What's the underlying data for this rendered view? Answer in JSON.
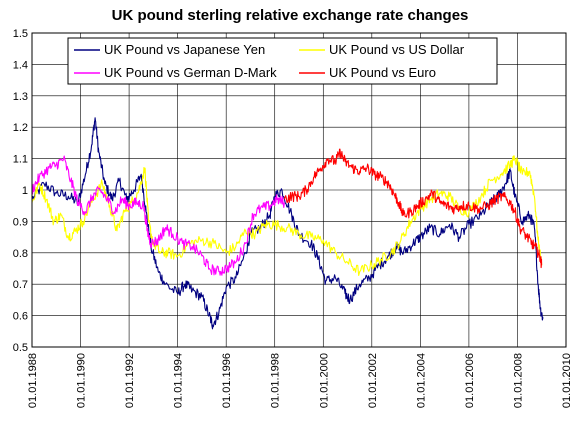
{
  "chart_data": {
    "type": "line",
    "title": "UK pound sterling relative exchange rate changes",
    "xlabel": "",
    "ylabel": "",
    "xlim": [
      1988,
      2010
    ],
    "ylim": [
      0.5,
      1.5
    ],
    "grid": true,
    "legend": "top (inside plot)",
    "y_ticks": [
      "0.5",
      "0.6",
      "0.7",
      "0.8",
      "0.9",
      "1",
      "1.1",
      "1.2",
      "1.3",
      "1.4",
      "1.5"
    ],
    "x_ticks": [
      "01.01.1988",
      "01.01.1990",
      "01.01.1992",
      "01.01.1994",
      "01.01.1996",
      "01.01.1998",
      "01.01.2000",
      "01.01.2002",
      "01.01.2004",
      "01.01.2006",
      "01.01.2008",
      "01.01.2010"
    ],
    "series": [
      {
        "name": "UK Pound vs Japanese Yen",
        "color": "#000080",
        "points": [
          [
            1988.0,
            0.97
          ],
          [
            1988.5,
            1.02
          ],
          [
            1989.0,
            0.99
          ],
          [
            1989.5,
            0.98
          ],
          [
            1989.9,
            0.96
          ],
          [
            1990.2,
            1.05
          ],
          [
            1990.45,
            1.14
          ],
          [
            1990.6,
            1.23
          ],
          [
            1990.75,
            1.12
          ],
          [
            1991.0,
            1.02
          ],
          [
            1991.3,
            0.97
          ],
          [
            1991.6,
            1.03
          ],
          [
            1991.9,
            0.97
          ],
          [
            1992.2,
            1.0
          ],
          [
            1992.5,
            1.05
          ],
          [
            1992.7,
            0.93
          ],
          [
            1992.9,
            0.82
          ],
          [
            1993.2,
            0.74
          ],
          [
            1993.5,
            0.7
          ],
          [
            1994.0,
            0.67
          ],
          [
            1994.3,
            0.7
          ],
          [
            1994.6,
            0.68
          ],
          [
            1995.0,
            0.66
          ],
          [
            1995.3,
            0.6
          ],
          [
            1995.45,
            0.57
          ],
          [
            1995.7,
            0.61
          ],
          [
            1996.0,
            0.69
          ],
          [
            1996.4,
            0.72
          ],
          [
            1996.8,
            0.8
          ],
          [
            1997.0,
            0.86
          ],
          [
            1997.4,
            0.88
          ],
          [
            1997.8,
            0.92
          ],
          [
            1998.0,
            0.98
          ],
          [
            1998.3,
            1.0
          ],
          [
            1998.7,
            0.92
          ],
          [
            1999.0,
            0.86
          ],
          [
            1999.5,
            0.83
          ],
          [
            1999.8,
            0.78
          ],
          [
            2000.1,
            0.71
          ],
          [
            2000.5,
            0.72
          ],
          [
            2000.9,
            0.67
          ],
          [
            2001.1,
            0.65
          ],
          [
            2001.5,
            0.7
          ],
          [
            2001.9,
            0.72
          ],
          [
            2002.3,
            0.76
          ],
          [
            2002.7,
            0.79
          ],
          [
            2003.0,
            0.82
          ],
          [
            2003.3,
            0.8
          ],
          [
            2003.7,
            0.83
          ],
          [
            2004.0,
            0.85
          ],
          [
            2004.4,
            0.88
          ],
          [
            2004.8,
            0.86
          ],
          [
            2005.2,
            0.89
          ],
          [
            2005.6,
            0.85
          ],
          [
            2006.0,
            0.89
          ],
          [
            2006.5,
            0.92
          ],
          [
            2006.9,
            0.96
          ],
          [
            2007.2,
            0.98
          ],
          [
            2007.5,
            1.02
          ],
          [
            2007.7,
            1.06
          ],
          [
            2007.9,
            0.98
          ],
          [
            2008.2,
            0.9
          ],
          [
            2008.5,
            0.92
          ],
          [
            2008.7,
            0.88
          ],
          [
            2008.85,
            0.7
          ],
          [
            2008.95,
            0.62
          ],
          [
            2009.05,
            0.59
          ]
        ]
      },
      {
        "name": "UK Pound vs US Dollar",
        "color": "#ffff00",
        "points": [
          [
            1988.0,
            0.96
          ],
          [
            1988.3,
            1.02
          ],
          [
            1988.6,
            0.97
          ],
          [
            1988.9,
            0.9
          ],
          [
            1989.2,
            0.92
          ],
          [
            1989.5,
            0.85
          ],
          [
            1989.8,
            0.87
          ],
          [
            1990.1,
            0.9
          ],
          [
            1990.5,
            0.97
          ],
          [
            1990.9,
            1.02
          ],
          [
            1991.2,
            0.95
          ],
          [
            1991.5,
            0.87
          ],
          [
            1991.8,
            0.93
          ],
          [
            1992.1,
            0.96
          ],
          [
            1992.4,
            1.0
          ],
          [
            1992.65,
            1.07
          ],
          [
            1992.8,
            0.9
          ],
          [
            1993.0,
            0.83
          ],
          [
            1993.3,
            0.8
          ],
          [
            1993.6,
            0.8
          ],
          [
            1994.0,
            0.79
          ],
          [
            1994.5,
            0.83
          ],
          [
            1995.0,
            0.84
          ],
          [
            1995.5,
            0.83
          ],
          [
            1996.0,
            0.8
          ],
          [
            1996.4,
            0.82
          ],
          [
            1996.8,
            0.87
          ],
          [
            1997.2,
            0.86
          ],
          [
            1997.6,
            0.89
          ],
          [
            1998.0,
            0.89
          ],
          [
            1998.5,
            0.88
          ],
          [
            1999.0,
            0.86
          ],
          [
            1999.5,
            0.85
          ],
          [
            2000.0,
            0.84
          ],
          [
            2000.5,
            0.8
          ],
          [
            2001.0,
            0.77
          ],
          [
            2001.5,
            0.74
          ],
          [
            2002.0,
            0.76
          ],
          [
            2002.4,
            0.78
          ],
          [
            2002.8,
            0.8
          ],
          [
            2003.2,
            0.84
          ],
          [
            2003.6,
            0.9
          ],
          [
            2004.0,
            0.94
          ],
          [
            2004.4,
            0.97
          ],
          [
            2004.8,
            0.99
          ],
          [
            2005.2,
            0.98
          ],
          [
            2005.6,
            0.94
          ],
          [
            2006.0,
            0.93
          ],
          [
            2006.5,
            0.98
          ],
          [
            2006.9,
            1.03
          ],
          [
            2007.3,
            1.05
          ],
          [
            2007.7,
            1.08
          ],
          [
            2007.9,
            1.1
          ],
          [
            2008.2,
            1.05
          ],
          [
            2008.5,
            1.06
          ],
          [
            2008.7,
            0.98
          ],
          [
            2008.85,
            0.84
          ],
          [
            2009.0,
            0.76
          ]
        ]
      },
      {
        "name": "UK Pound vs German D-Mark",
        "color": "#ff00ff",
        "points": [
          [
            1988.0,
            1.0
          ],
          [
            1988.3,
            1.04
          ],
          [
            1988.7,
            1.07
          ],
          [
            1989.0,
            1.08
          ],
          [
            1989.3,
            1.1
          ],
          [
            1989.6,
            1.03
          ],
          [
            1989.9,
            0.96
          ],
          [
            1990.2,
            0.93
          ],
          [
            1990.5,
            0.98
          ],
          [
            1990.8,
            1.0
          ],
          [
            1991.1,
            0.97
          ],
          [
            1991.4,
            0.93
          ],
          [
            1991.7,
            0.97
          ],
          [
            1992.0,
            0.95
          ],
          [
            1992.3,
            0.96
          ],
          [
            1992.6,
            0.95
          ],
          [
            1992.75,
            0.87
          ],
          [
            1992.9,
            0.83
          ],
          [
            1993.2,
            0.84
          ],
          [
            1993.5,
            0.88
          ],
          [
            1993.8,
            0.86
          ],
          [
            1994.2,
            0.83
          ],
          [
            1994.6,
            0.82
          ],
          [
            1995.0,
            0.79
          ],
          [
            1995.3,
            0.75
          ],
          [
            1995.7,
            0.74
          ],
          [
            1996.0,
            0.75
          ],
          [
            1996.4,
            0.77
          ],
          [
            1996.8,
            0.83
          ],
          [
            1997.1,
            0.92
          ],
          [
            1997.4,
            0.94
          ],
          [
            1997.8,
            0.95
          ],
          [
            1998.1,
            0.97
          ],
          [
            1998.4,
            0.96
          ]
        ]
      },
      {
        "name": "UK Pound vs Euro",
        "color": "#ff0000",
        "points": [
          [
            1998.4,
            0.97
          ],
          [
            1998.7,
            0.98
          ],
          [
            1999.0,
            0.98
          ],
          [
            1999.3,
            1.0
          ],
          [
            1999.6,
            1.04
          ],
          [
            1999.9,
            1.07
          ],
          [
            2000.2,
            1.1
          ],
          [
            2000.5,
            1.09
          ],
          [
            2000.7,
            1.12
          ],
          [
            2000.9,
            1.09
          ],
          [
            2001.2,
            1.07
          ],
          [
            2001.5,
            1.06
          ],
          [
            2001.8,
            1.07
          ],
          [
            2002.1,
            1.05
          ],
          [
            2002.4,
            1.04
          ],
          [
            2002.7,
            1.02
          ],
          [
            2002.9,
            0.99
          ],
          [
            2003.1,
            0.96
          ],
          [
            2003.3,
            0.92
          ],
          [
            2003.6,
            0.93
          ],
          [
            2003.9,
            0.95
          ],
          [
            2004.2,
            0.97
          ],
          [
            2004.5,
            0.99
          ],
          [
            2004.8,
            0.96
          ],
          [
            2005.1,
            0.95
          ],
          [
            2005.4,
            0.94
          ],
          [
            2005.7,
            0.95
          ],
          [
            2006.0,
            0.95
          ],
          [
            2006.4,
            0.94
          ],
          [
            2006.8,
            0.95
          ],
          [
            2007.1,
            0.97
          ],
          [
            2007.4,
            0.98
          ],
          [
            2007.7,
            0.96
          ],
          [
            2007.9,
            0.93
          ],
          [
            2008.1,
            0.88
          ],
          [
            2008.4,
            0.85
          ],
          [
            2008.6,
            0.83
          ],
          [
            2008.8,
            0.81
          ],
          [
            2008.95,
            0.78
          ],
          [
            2009.0,
            0.76
          ]
        ]
      }
    ]
  }
}
